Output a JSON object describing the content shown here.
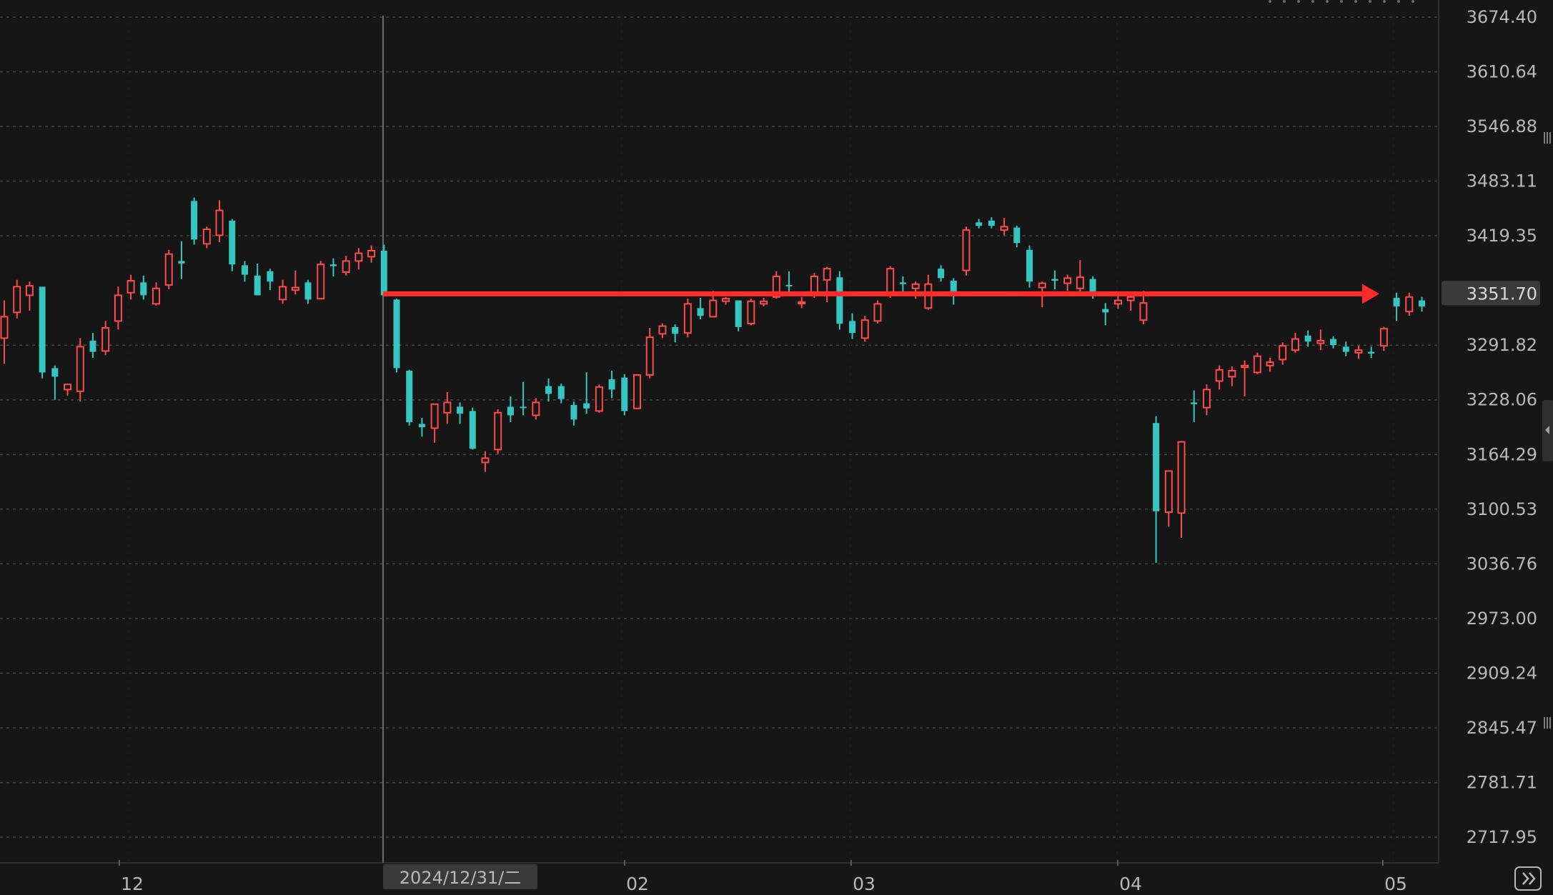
{
  "chart_data": {
    "type": "candlestick",
    "interval": "daily",
    "price_axis": {
      "ticks": [
        "3674.40",
        "3610.64",
        "3546.88",
        "3483.11",
        "3419.35",
        "3351.70",
        "3291.82",
        "3228.06",
        "3164.29",
        "3100.53",
        "3036.76",
        "2973.00",
        "2909.24",
        "2845.47",
        "2781.71",
        "2717.95"
      ],
      "tick_values": [
        3674.4,
        3610.64,
        3546.88,
        3483.11,
        3419.35,
        3291.82,
        3228.06,
        3164.29,
        3100.53,
        3036.76,
        2973.0,
        2909.24,
        2845.47,
        2781.71,
        2717.95
      ],
      "last_price_label": "3351.70",
      "last_price": 3351.7
    },
    "time_axis": {
      "labels": [
        "12",
        "02",
        "03",
        "04",
        "05"
      ],
      "crosshair_date_label": "2024/12/31/二"
    },
    "annotation": {
      "type": "horizontal-arrow",
      "level": 3351.7,
      "color": "#ff2a2a"
    },
    "colors": {
      "up": "#ff4a4a",
      "down": "#36c6c1",
      "background": "#161616",
      "grid": "#474747",
      "axis_text": "#b7b7b7",
      "crosshair": "#6b6b6b"
    },
    "candles": [
      {
        "o": 3300,
        "h": 3344,
        "l": 3270,
        "c": 3325,
        "d": "up"
      },
      {
        "o": 3330,
        "h": 3368,
        "l": 3323,
        "c": 3360,
        "d": "up"
      },
      {
        "o": 3350,
        "h": 3366,
        "l": 3332,
        "c": 3361,
        "d": "up"
      },
      {
        "o": 3360,
        "h": 3359,
        "l": 3253,
        "c": 3260,
        "d": "down"
      },
      {
        "o": 3265,
        "h": 3268,
        "l": 3228,
        "c": 3255,
        "d": "down"
      },
      {
        "o": 3240,
        "h": 3245,
        "l": 3233,
        "c": 3246,
        "d": "up"
      },
      {
        "o": 3238,
        "h": 3300,
        "l": 3226,
        "c": 3290,
        "d": "up"
      },
      {
        "o": 3297,
        "h": 3306,
        "l": 3277,
        "c": 3284,
        "d": "down"
      },
      {
        "o": 3285,
        "h": 3320,
        "l": 3280,
        "c": 3312,
        "d": "up"
      },
      {
        "o": 3320,
        "h": 3360,
        "l": 3310,
        "c": 3350,
        "d": "up"
      },
      {
        "o": 3353,
        "h": 3374,
        "l": 3345,
        "c": 3367,
        "d": "up"
      },
      {
        "o": 3365,
        "h": 3373,
        "l": 3345,
        "c": 3350,
        "d": "down"
      },
      {
        "o": 3340,
        "h": 3365,
        "l": 3338,
        "c": 3358,
        "d": "up"
      },
      {
        "o": 3362,
        "h": 3403,
        "l": 3357,
        "c": 3398,
        "d": "up"
      },
      {
        "o": 3390,
        "h": 3413,
        "l": 3369,
        "c": 3387,
        "d": "down"
      },
      {
        "o": 3460,
        "h": 3464,
        "l": 3409,
        "c": 3415,
        "d": "down"
      },
      {
        "o": 3410,
        "h": 3430,
        "l": 3405,
        "c": 3427,
        "d": "up"
      },
      {
        "o": 3420,
        "h": 3461,
        "l": 3412,
        "c": 3449,
        "d": "up"
      },
      {
        "o": 3437,
        "h": 3439,
        "l": 3378,
        "c": 3386,
        "d": "down"
      },
      {
        "o": 3385,
        "h": 3390,
        "l": 3366,
        "c": 3374,
        "d": "down"
      },
      {
        "o": 3373,
        "h": 3387,
        "l": 3350,
        "c": 3350,
        "d": "down"
      },
      {
        "o": 3366,
        "h": 3381,
        "l": 3356,
        "c": 3378,
        "d": "down"
      },
      {
        "o": 3345,
        "h": 3368,
        "l": 3340,
        "c": 3360,
        "d": "up"
      },
      {
        "o": 3359,
        "h": 3379,
        "l": 3351,
        "c": 3356,
        "d": "up"
      },
      {
        "o": 3365,
        "h": 3368,
        "l": 3340,
        "c": 3345,
        "d": "down"
      },
      {
        "o": 3346,
        "h": 3390,
        "l": 3345,
        "c": 3386,
        "d": "up"
      },
      {
        "o": 3384,
        "h": 3393,
        "l": 3372,
        "c": 3386,
        "d": "down"
      },
      {
        "o": 3377,
        "h": 3396,
        "l": 3373,
        "c": 3390,
        "d": "up"
      },
      {
        "o": 3390,
        "h": 3405,
        "l": 3380,
        "c": 3399,
        "d": "up"
      },
      {
        "o": 3395,
        "h": 3408,
        "l": 3388,
        "c": 3402,
        "d": "up"
      },
      {
        "o": 3402,
        "h": 3409,
        "l": 3350,
        "c": 3350,
        "d": "down"
      },
      {
        "o": 3345,
        "h": 3346,
        "l": 3260,
        "c": 3265,
        "d": "down"
      },
      {
        "o": 3262,
        "h": 3263,
        "l": 3198,
        "c": 3202,
        "d": "down"
      },
      {
        "o": 3200,
        "h": 3207,
        "l": 3185,
        "c": 3196,
        "d": "down"
      },
      {
        "o": 3195,
        "h": 3223,
        "l": 3178,
        "c": 3223,
        "d": "up"
      },
      {
        "o": 3213,
        "h": 3237,
        "l": 3200,
        "c": 3225,
        "d": "up"
      },
      {
        "o": 3220,
        "h": 3225,
        "l": 3200,
        "c": 3212,
        "d": "down"
      },
      {
        "o": 3215,
        "h": 3219,
        "l": 3170,
        "c": 3171,
        "d": "down"
      },
      {
        "o": 3160,
        "h": 3168,
        "l": 3144,
        "c": 3155,
        "d": "up"
      },
      {
        "o": 3170,
        "h": 3217,
        "l": 3165,
        "c": 3213,
        "d": "up"
      },
      {
        "o": 3220,
        "h": 3232,
        "l": 3202,
        "c": 3210,
        "d": "down"
      },
      {
        "o": 3220,
        "h": 3249,
        "l": 3210,
        "c": 3220,
        "d": "down"
      },
      {
        "o": 3210,
        "h": 3230,
        "l": 3205,
        "c": 3225,
        "d": "up"
      },
      {
        "o": 3235,
        "h": 3253,
        "l": 3226,
        "c": 3244,
        "d": "down"
      },
      {
        "o": 3244,
        "h": 3247,
        "l": 3224,
        "c": 3229,
        "d": "down"
      },
      {
        "o": 3222,
        "h": 3226,
        "l": 3198,
        "c": 3205,
        "d": "down"
      },
      {
        "o": 3224,
        "h": 3260,
        "l": 3212,
        "c": 3218,
        "d": "down"
      },
      {
        "o": 3215,
        "h": 3246,
        "l": 3213,
        "c": 3243,
        "d": "up"
      },
      {
        "o": 3252,
        "h": 3262,
        "l": 3230,
        "c": 3240,
        "d": "down"
      },
      {
        "o": 3254,
        "h": 3258,
        "l": 3210,
        "c": 3215,
        "d": "down"
      },
      {
        "o": 3218,
        "h": 3258,
        "l": 3217,
        "c": 3257,
        "d": "up"
      },
      {
        "o": 3257,
        "h": 3312,
        "l": 3253,
        "c": 3301,
        "d": "up"
      },
      {
        "o": 3305,
        "h": 3317,
        "l": 3300,
        "c": 3314,
        "d": "up"
      },
      {
        "o": 3305,
        "h": 3316,
        "l": 3295,
        "c": 3313,
        "d": "down"
      },
      {
        "o": 3306,
        "h": 3346,
        "l": 3301,
        "c": 3340,
        "d": "up"
      },
      {
        "o": 3335,
        "h": 3347,
        "l": 3322,
        "c": 3326,
        "d": "down"
      },
      {
        "o": 3325,
        "h": 3355,
        "l": 3324,
        "c": 3344,
        "d": "up"
      },
      {
        "o": 3343,
        "h": 3348,
        "l": 3339,
        "c": 3346,
        "d": "up"
      },
      {
        "o": 3344,
        "h": 3344,
        "l": 3308,
        "c": 3313,
        "d": "down"
      },
      {
        "o": 3317,
        "h": 3346,
        "l": 3315,
        "c": 3343,
        "d": "up"
      },
      {
        "o": 3343,
        "h": 3347,
        "l": 3337,
        "c": 3340,
        "d": "up"
      },
      {
        "o": 3348,
        "h": 3378,
        "l": 3346,
        "c": 3372,
        "d": "up"
      },
      {
        "o": 3362,
        "h": 3378,
        "l": 3349,
        "c": 3362,
        "d": "down"
      },
      {
        "o": 3342,
        "h": 3348,
        "l": 3335,
        "c": 3342,
        "d": "up"
      },
      {
        "o": 3350,
        "h": 3376,
        "l": 3347,
        "c": 3372,
        "d": "up"
      },
      {
        "o": 3368,
        "h": 3383,
        "l": 3342,
        "c": 3381,
        "d": "up"
      },
      {
        "o": 3371,
        "h": 3378,
        "l": 3310,
        "c": 3317,
        "d": "down"
      },
      {
        "o": 3320,
        "h": 3329,
        "l": 3299,
        "c": 3306,
        "d": "down"
      },
      {
        "o": 3300,
        "h": 3326,
        "l": 3296,
        "c": 3321,
        "d": "up"
      },
      {
        "o": 3320,
        "h": 3344,
        "l": 3317,
        "c": 3340,
        "d": "up"
      },
      {
        "o": 3351,
        "h": 3384,
        "l": 3347,
        "c": 3381,
        "d": "up"
      },
      {
        "o": 3365,
        "h": 3372,
        "l": 3350,
        "c": 3363,
        "d": "down"
      },
      {
        "o": 3363,
        "h": 3366,
        "l": 3346,
        "c": 3358,
        "d": "up"
      },
      {
        "o": 3335,
        "h": 3374,
        "l": 3333,
        "c": 3363,
        "d": "up"
      },
      {
        "o": 3381,
        "h": 3385,
        "l": 3366,
        "c": 3370,
        "d": "down"
      },
      {
        "o": 3367,
        "h": 3370,
        "l": 3339,
        "c": 3351,
        "d": "down"
      },
      {
        "o": 3379,
        "h": 3430,
        "l": 3373,
        "c": 3426,
        "d": "up"
      },
      {
        "o": 3435,
        "h": 3439,
        "l": 3428,
        "c": 3431,
        "d": "down"
      },
      {
        "o": 3437,
        "h": 3441,
        "l": 3428,
        "c": 3431,
        "d": "down"
      },
      {
        "o": 3430,
        "h": 3440,
        "l": 3420,
        "c": 3426,
        "d": "up"
      },
      {
        "o": 3429,
        "h": 3431,
        "l": 3406,
        "c": 3411,
        "d": "down"
      },
      {
        "o": 3403,
        "h": 3408,
        "l": 3359,
        "c": 3366,
        "d": "down"
      },
      {
        "o": 3359,
        "h": 3366,
        "l": 3336,
        "c": 3364,
        "d": "up"
      },
      {
        "o": 3367,
        "h": 3379,
        "l": 3357,
        "c": 3369,
        "d": "down"
      },
      {
        "o": 3364,
        "h": 3374,
        "l": 3355,
        "c": 3370,
        "d": "up"
      },
      {
        "o": 3358,
        "h": 3391,
        "l": 3354,
        "c": 3371,
        "d": "up"
      },
      {
        "o": 3369,
        "h": 3372,
        "l": 3346,
        "c": 3350,
        "d": "down"
      },
      {
        "o": 3334,
        "h": 3341,
        "l": 3315,
        "c": 3330,
        "d": "down"
      },
      {
        "o": 3340,
        "h": 3350,
        "l": 3334,
        "c": 3344,
        "d": "up"
      },
      {
        "o": 3344,
        "h": 3351,
        "l": 3332,
        "c": 3348,
        "d": "up"
      },
      {
        "o": 3341,
        "h": 3355,
        "l": 3316,
        "c": 3321,
        "d": "up"
      },
      {
        "o": 3201,
        "h": 3209,
        "l": 3038,
        "c": 3098,
        "d": "down"
      },
      {
        "o": 3097,
        "h": 3145,
        "l": 3080,
        "c": 3145,
        "d": "up"
      },
      {
        "o": 3096,
        "h": 3180,
        "l": 3067,
        "c": 3179,
        "d": "up"
      },
      {
        "o": 3225,
        "h": 3239,
        "l": 3202,
        "c": 3223,
        "d": "down"
      },
      {
        "o": 3219,
        "h": 3246,
        "l": 3210,
        "c": 3240,
        "d": "up"
      },
      {
        "o": 3250,
        "h": 3268,
        "l": 3240,
        "c": 3263,
        "d": "up"
      },
      {
        "o": 3255,
        "h": 3267,
        "l": 3244,
        "c": 3262,
        "d": "up"
      },
      {
        "o": 3266,
        "h": 3274,
        "l": 3232,
        "c": 3268,
        "d": "up"
      },
      {
        "o": 3260,
        "h": 3283,
        "l": 3258,
        "c": 3279,
        "d": "up"
      },
      {
        "o": 3268,
        "h": 3277,
        "l": 3261,
        "c": 3272,
        "d": "up"
      },
      {
        "o": 3275,
        "h": 3295,
        "l": 3269,
        "c": 3291,
        "d": "up"
      },
      {
        "o": 3286,
        "h": 3306,
        "l": 3283,
        "c": 3299,
        "d": "up"
      },
      {
        "o": 3303,
        "h": 3309,
        "l": 3290,
        "c": 3296,
        "d": "down"
      },
      {
        "o": 3294,
        "h": 3310,
        "l": 3286,
        "c": 3297,
        "d": "up"
      },
      {
        "o": 3299,
        "h": 3302,
        "l": 3288,
        "c": 3292,
        "d": "down"
      },
      {
        "o": 3290,
        "h": 3296,
        "l": 3279,
        "c": 3284,
        "d": "down"
      },
      {
        "o": 3283,
        "h": 3291,
        "l": 3276,
        "c": 3286,
        "d": "up"
      },
      {
        "o": 3282,
        "h": 3290,
        "l": 3277,
        "c": 3284,
        "d": "down"
      },
      {
        "o": 3291,
        "h": 3313,
        "l": 3285,
        "c": 3311,
        "d": "up"
      },
      {
        "o": 3347,
        "h": 3353,
        "l": 3320,
        "c": 3337,
        "d": "down"
      },
      {
        "o": 3331,
        "h": 3353,
        "l": 3326,
        "c": 3348,
        "d": "up"
      },
      {
        "o": 3344,
        "h": 3348,
        "l": 3331,
        "c": 3337,
        "d": "down"
      }
    ]
  }
}
